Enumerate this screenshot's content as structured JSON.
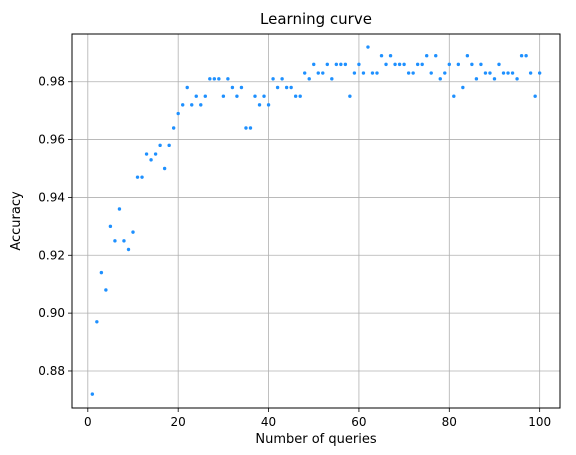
{
  "chart_data": {
    "type": "scatter",
    "title": "Learning curve",
    "xlabel": "Number of queries",
    "ylabel": "Accuracy",
    "xlim": [
      -3.5,
      104.5
    ],
    "ylim": [
      0.8672,
      0.9965
    ],
    "xticks": [
      0,
      20,
      40,
      60,
      80,
      100
    ],
    "yticks": [
      0.88,
      0.9,
      0.92,
      0.94,
      0.96,
      0.98
    ],
    "xtick_labels": [
      "0",
      "20",
      "40",
      "60",
      "80",
      "100"
    ],
    "ytick_labels": [
      "0.88",
      "0.90",
      "0.92",
      "0.94",
      "0.96",
      "0.98"
    ],
    "grid": true,
    "marker_color": "#1e90ff",
    "series": [
      {
        "x": [
          1,
          2,
          3,
          4,
          5,
          6,
          7,
          8,
          9,
          10,
          11,
          12,
          13,
          14,
          15,
          16,
          17,
          18,
          19,
          20,
          21,
          22,
          23,
          24,
          25,
          26,
          27,
          28,
          29,
          30,
          31,
          32,
          33,
          34,
          35,
          36,
          37,
          38,
          39,
          40,
          41,
          42,
          43,
          44,
          45,
          46,
          47,
          48,
          49,
          50,
          51,
          52,
          53,
          54,
          55,
          56,
          57,
          58,
          59,
          60,
          61,
          62,
          63,
          64,
          65,
          66,
          67,
          68,
          69,
          70,
          71,
          72,
          73,
          74,
          75,
          76,
          77,
          78,
          79,
          80,
          81,
          82,
          83,
          84,
          85,
          86,
          87,
          88,
          89,
          90,
          91,
          92,
          93,
          94,
          95,
          96,
          97,
          98,
          99,
          100
        ],
        "y": [
          0.872,
          0.897,
          0.914,
          0.908,
          0.93,
          0.925,
          0.936,
          0.925,
          0.922,
          0.928,
          0.947,
          0.947,
          0.955,
          0.953,
          0.955,
          0.958,
          0.95,
          0.958,
          0.964,
          0.969,
          0.972,
          0.978,
          0.972,
          0.975,
          0.972,
          0.975,
          0.981,
          0.981,
          0.981,
          0.975,
          0.981,
          0.978,
          0.975,
          0.978,
          0.964,
          0.964,
          0.975,
          0.972,
          0.975,
          0.972,
          0.981,
          0.978,
          0.981,
          0.978,
          0.978,
          0.975,
          0.975,
          0.983,
          0.981,
          0.986,
          0.983,
          0.983,
          0.986,
          0.981,
          0.986,
          0.986,
          0.986,
          0.975,
          0.983,
          0.986,
          0.983,
          0.992,
          0.983,
          0.983,
          0.989,
          0.986,
          0.989,
          0.986,
          0.986,
          0.986,
          0.983,
          0.983,
          0.986,
          0.986,
          0.989,
          0.983,
          0.989,
          0.981,
          0.983,
          0.986,
          0.975,
          0.986,
          0.978,
          0.989,
          0.986,
          0.981,
          0.986,
          0.983,
          0.983,
          0.981,
          0.986,
          0.983,
          0.983,
          0.983,
          0.981,
          0.989,
          0.989,
          0.983,
          0.975,
          0.983
        ]
      }
    ]
  }
}
